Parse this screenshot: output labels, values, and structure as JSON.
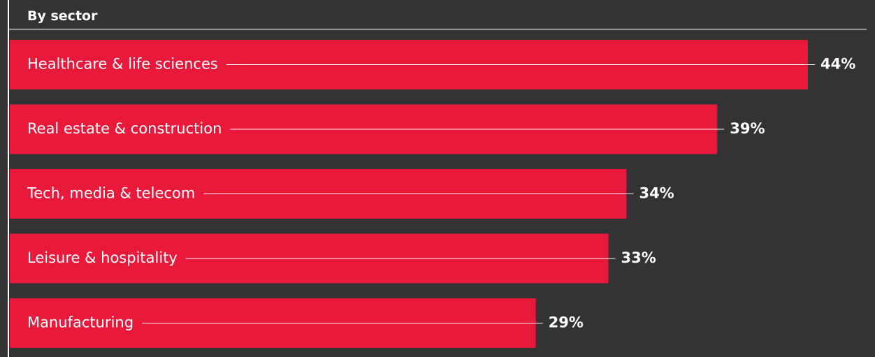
{
  "heading": "By sector",
  "colors": {
    "background": "#333333",
    "bar": "#e8193a",
    "text": "#ffffff",
    "axis": "#ffffff"
  },
  "chart_data": {
    "type": "bar",
    "orientation": "horizontal",
    "categories": [
      "Healthcare & life sciences",
      "Real estate & construction",
      "Tech, media & telecom",
      "Leisure & hospitality",
      "Manufacturing"
    ],
    "values": [
      44,
      39,
      34,
      33,
      29
    ],
    "value_labels": [
      "44%",
      "39%",
      "34%",
      "33%",
      "29%"
    ],
    "title": "By sector",
    "xlabel": "",
    "ylabel": "",
    "xlim": [
      0,
      48
    ],
    "grid": false,
    "legend": "none"
  }
}
